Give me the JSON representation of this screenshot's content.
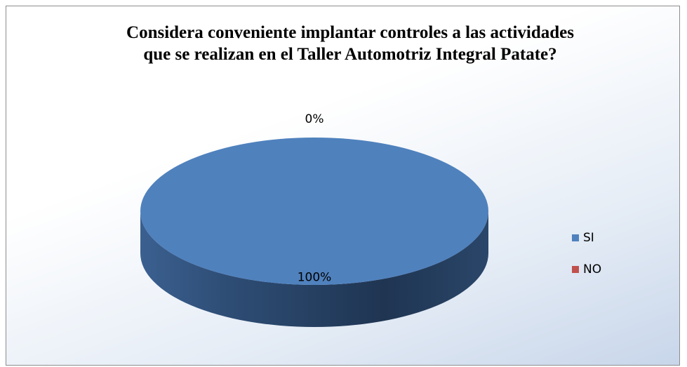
{
  "chart_data": {
    "type": "pie",
    "title": "Considera conveniente implantar controles a las actividades que se realizan en el Taller Automotriz Integral Patate?",
    "categories": [
      "SI",
      "NO"
    ],
    "values": [
      100,
      0
    ],
    "value_labels": [
      "100%",
      "0%"
    ],
    "colors": [
      "#4f81bd",
      "#c0504d"
    ],
    "legend": "right"
  }
}
